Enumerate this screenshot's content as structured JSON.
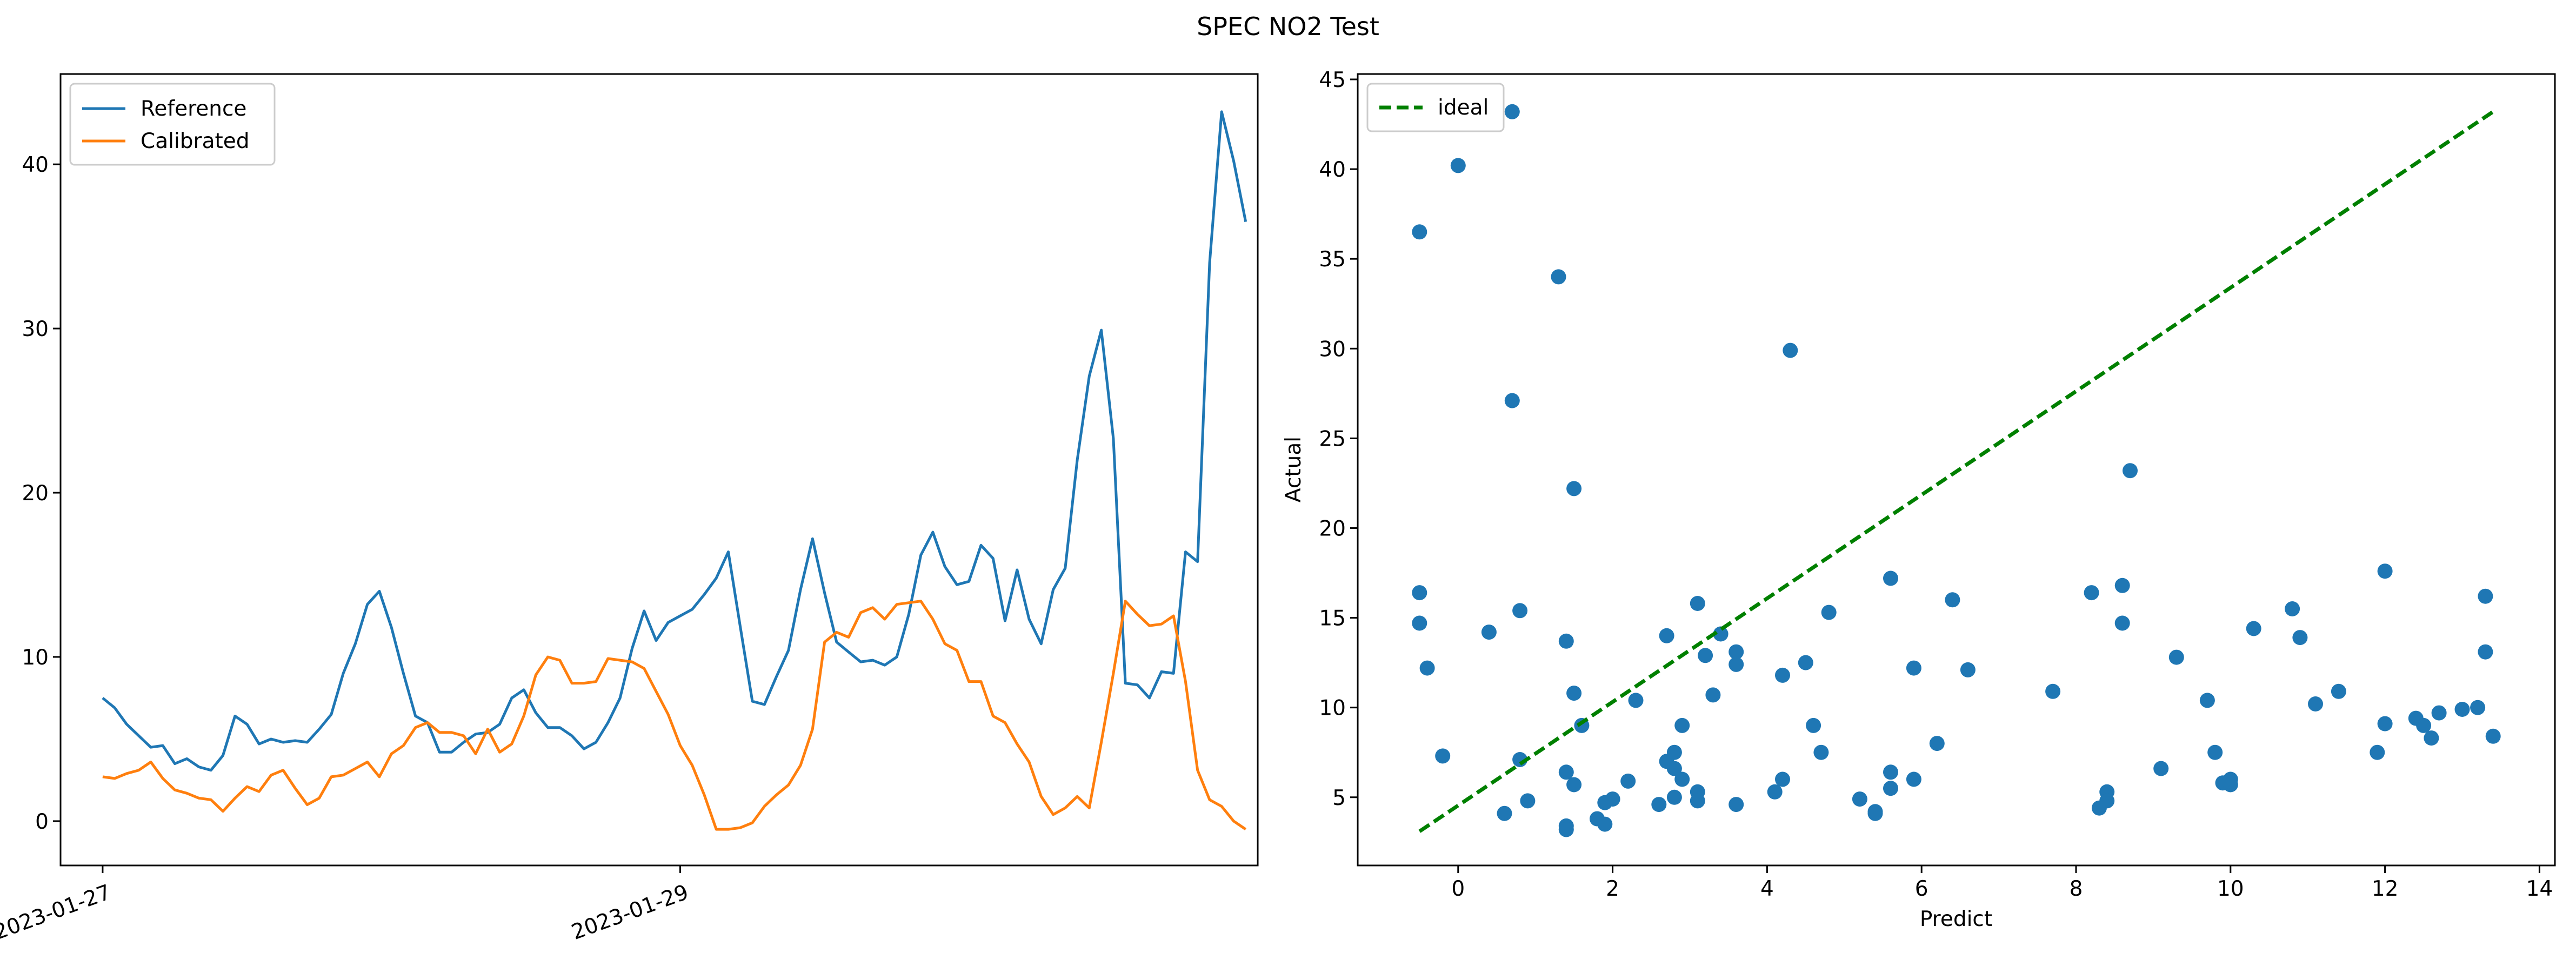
{
  "figure": {
    "title": "SPEC NO2 Test"
  },
  "chart_data": [
    {
      "type": "line",
      "title": "",
      "xlabel": "",
      "ylabel": "",
      "x_ticks": [
        {
          "date": "2023-01-27",
          "label": "2023-01-27"
        },
        {
          "date": "2023-01-29",
          "label": "2023-01-29"
        }
      ],
      "y_ticks": [
        0,
        10,
        20,
        30,
        40
      ],
      "xlim": [
        "2023-01-26T20:30",
        "2023-01-31T00:00"
      ],
      "ylim": [
        -2.7,
        45.5
      ],
      "legend": {
        "position": "top-left"
      },
      "x_start": "2023-01-27T00:00",
      "x_step_hours": 1,
      "series": [
        {
          "name": "Reference",
          "color": "#1f77b4",
          "values": [
            7.5,
            6.9,
            5.9,
            5.2,
            4.5,
            4.6,
            3.5,
            3.8,
            3.3,
            3.1,
            4.0,
            6.4,
            5.9,
            4.7,
            5.0,
            4.8,
            4.9,
            4.8,
            5.6,
            6.5,
            9.0,
            10.8,
            13.2,
            14.0,
            11.8,
            9.0,
            6.4,
            6.0,
            4.2,
            4.2,
            4.8,
            5.3,
            5.4,
            5.9,
            7.5,
            8.0,
            6.6,
            5.7,
            5.7,
            5.2,
            4.4,
            4.8,
            6.0,
            7.5,
            10.5,
            12.8,
            11.0,
            12.1,
            12.5,
            12.9,
            13.8,
            14.8,
            16.4,
            11.8,
            7.3,
            7.1,
            8.8,
            10.4,
            14.1,
            17.2,
            13.9,
            10.9,
            10.3,
            9.7,
            9.8,
            9.5,
            10.0,
            12.6,
            16.2,
            17.6,
            15.5,
            14.4,
            14.6,
            16.8,
            16.0,
            12.2,
            15.3,
            12.3,
            10.8,
            14.1,
            15.4,
            22.0,
            27.1,
            29.9,
            23.3,
            8.4,
            8.3,
            7.5,
            9.1,
            9.0,
            16.4,
            15.8,
            34.0,
            43.2,
            40.2,
            36.5
          ]
        },
        {
          "name": "Calibrated",
          "color": "#ff7f0e",
          "values": [
            2.7,
            2.6,
            2.9,
            3.1,
            3.6,
            2.6,
            1.9,
            1.7,
            1.4,
            1.3,
            0.6,
            1.4,
            2.1,
            1.8,
            2.8,
            3.1,
            2.0,
            1.0,
            1.4,
            2.7,
            2.8,
            3.2,
            3.6,
            2.7,
            4.1,
            4.6,
            5.7,
            6.0,
            5.4,
            5.4,
            5.2,
            4.1,
            5.6,
            4.2,
            4.7,
            6.4,
            8.9,
            10.0,
            9.8,
            8.4,
            8.4,
            8.5,
            9.9,
            9.8,
            9.7,
            9.3,
            7.9,
            6.5,
            4.6,
            3.4,
            1.6,
            -0.5,
            -0.5,
            -0.4,
            -0.1,
            0.9,
            1.6,
            2.2,
            3.4,
            5.6,
            10.9,
            11.5,
            11.2,
            12.7,
            13.0,
            12.3,
            13.2,
            13.3,
            13.4,
            12.3,
            10.8,
            10.4,
            8.5,
            8.5,
            6.4,
            6.0,
            4.7,
            3.6,
            1.5,
            0.4,
            0.8,
            1.5,
            0.8,
            4.8,
            9.0,
            13.4,
            12.6,
            11.9,
            12.0,
            12.5,
            8.5,
            3.1,
            1.3,
            0.9,
            0.0,
            -0.5
          ]
        }
      ]
    },
    {
      "type": "scatter",
      "title": "",
      "xlabel": "Predict",
      "ylabel": "Actual",
      "x_ticks": [
        0,
        2,
        4,
        6,
        8,
        10,
        12,
        14
      ],
      "y_ticks": [
        5,
        10,
        15,
        20,
        25,
        30,
        35,
        40,
        45
      ],
      "xlim": [
        -1.3,
        14.2
      ],
      "ylim": [
        1.2,
        45.3
      ],
      "legend": {
        "position": "top-left"
      },
      "ideal": {
        "name": "ideal",
        "color": "#008000",
        "x": [
          -0.5,
          13.4
        ],
        "y": [
          3.1,
          43.2
        ]
      },
      "points_color": "#1f77b4",
      "points": [
        [
          -0.5,
          36.5
        ],
        [
          -0.5,
          16.4
        ],
        [
          -0.5,
          14.7
        ],
        [
          -0.4,
          12.2
        ],
        [
          -0.2,
          7.3
        ],
        [
          0.0,
          40.2
        ],
        [
          0.4,
          14.2
        ],
        [
          0.6,
          4.1
        ],
        [
          0.7,
          43.2
        ],
        [
          0.7,
          27.1
        ],
        [
          0.8,
          15.4
        ],
        [
          0.8,
          7.1
        ],
        [
          0.9,
          4.8
        ],
        [
          1.3,
          34.0
        ],
        [
          1.4,
          13.7
        ],
        [
          1.4,
          6.4
        ],
        [
          1.4,
          3.4
        ],
        [
          1.4,
          3.2
        ],
        [
          1.5,
          22.2
        ],
        [
          1.5,
          5.7
        ],
        [
          1.5,
          10.8
        ],
        [
          1.6,
          9.0
        ],
        [
          1.8,
          3.8
        ],
        [
          1.9,
          4.7
        ],
        [
          1.9,
          3.5
        ],
        [
          2.0,
          4.9
        ],
        [
          2.2,
          5.9
        ],
        [
          2.3,
          10.4
        ],
        [
          2.6,
          4.6
        ],
        [
          2.7,
          7.0
        ],
        [
          2.7,
          14.0
        ],
        [
          2.8,
          6.6
        ],
        [
          2.8,
          7.5
        ],
        [
          2.8,
          5.0
        ],
        [
          2.9,
          9.0
        ],
        [
          2.9,
          6.0
        ],
        [
          3.1,
          5.3
        ],
        [
          3.1,
          4.8
        ],
        [
          3.1,
          15.8
        ],
        [
          3.2,
          12.9
        ],
        [
          3.3,
          10.7
        ],
        [
          3.4,
          14.1
        ],
        [
          3.6,
          13.1
        ],
        [
          3.6,
          12.4
        ],
        [
          3.6,
          4.6
        ],
        [
          4.1,
          5.3
        ],
        [
          4.2,
          11.8
        ],
        [
          4.2,
          6.0
        ],
        [
          4.3,
          29.9
        ],
        [
          4.5,
          12.5
        ],
        [
          4.6,
          9.0
        ],
        [
          4.7,
          7.5
        ],
        [
          4.8,
          15.3
        ],
        [
          5.2,
          4.9
        ],
        [
          5.4,
          4.2
        ],
        [
          5.4,
          4.1
        ],
        [
          5.6,
          17.2
        ],
        [
          5.6,
          6.4
        ],
        [
          5.6,
          5.5
        ],
        [
          5.9,
          12.2
        ],
        [
          5.9,
          6.0
        ],
        [
          6.2,
          8.0
        ],
        [
          6.4,
          16.0
        ],
        [
          6.6,
          12.1
        ],
        [
          7.7,
          10.9
        ],
        [
          8.2,
          16.4
        ],
        [
          8.3,
          4.4
        ],
        [
          8.4,
          5.3
        ],
        [
          8.4,
          4.8
        ],
        [
          8.6,
          16.8
        ],
        [
          8.6,
          14.7
        ],
        [
          8.7,
          23.2
        ],
        [
          9.1,
          6.6
        ],
        [
          9.3,
          12.8
        ],
        [
          9.7,
          10.4
        ],
        [
          9.8,
          7.5
        ],
        [
          9.9,
          5.8
        ],
        [
          10.0,
          6.0
        ],
        [
          10.0,
          5.7
        ],
        [
          10.3,
          14.4
        ],
        [
          10.8,
          15.5
        ],
        [
          10.9,
          13.9
        ],
        [
          11.1,
          10.2
        ],
        [
          11.4,
          10.9
        ],
        [
          11.9,
          7.5
        ],
        [
          12.0,
          17.6
        ],
        [
          12.0,
          9.1
        ],
        [
          12.4,
          9.4
        ],
        [
          12.5,
          9.0
        ],
        [
          12.6,
          8.3
        ],
        [
          12.7,
          9.7
        ],
        [
          13.0,
          9.9
        ],
        [
          13.2,
          10.0
        ],
        [
          13.3,
          16.2
        ],
        [
          13.3,
          13.1
        ],
        [
          13.4,
          8.4
        ]
      ]
    }
  ]
}
